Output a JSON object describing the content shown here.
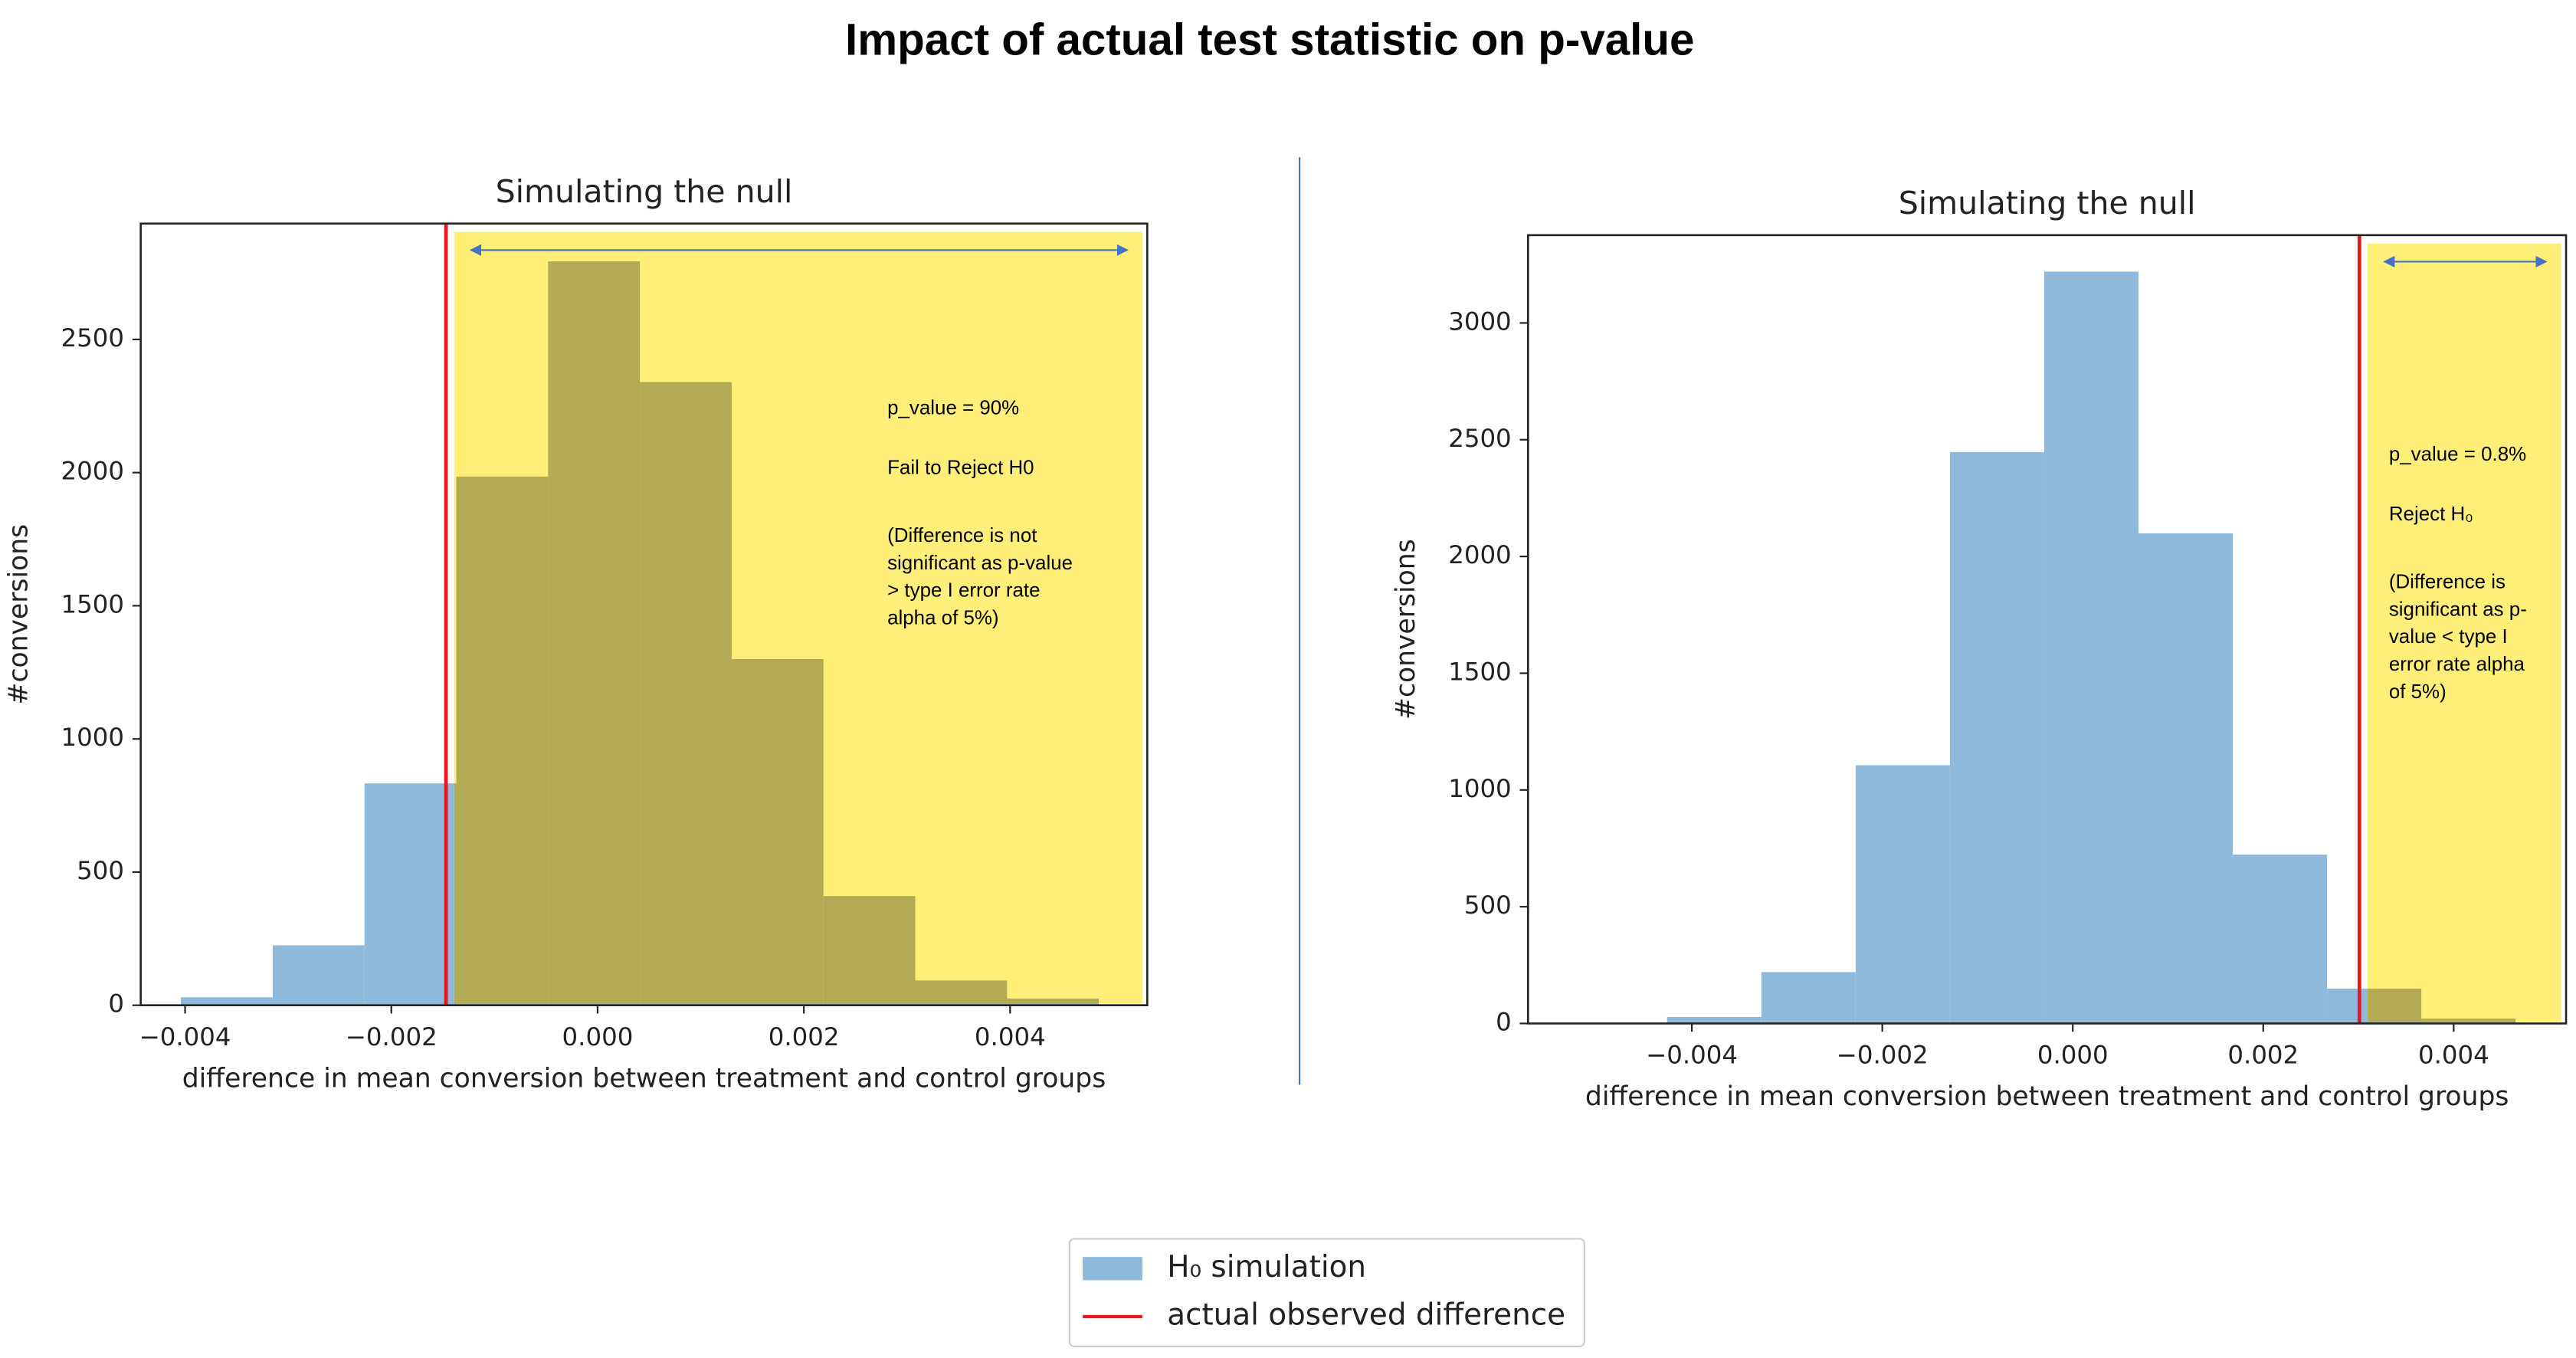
{
  "title": "Impact of actual test statistic on p-value",
  "legend": [
    {
      "label": "H₀ simulation",
      "color": "#8fb9da"
    },
    {
      "label": "actual observed difference",
      "color": "#e8171d"
    }
  ],
  "chart_data": [
    {
      "type": "histogram",
      "title": "Simulating the null",
      "xlabel": "difference in mean conversion between treatment and control groups",
      "ylabel": "#conversions",
      "bins": [
        -0.00404,
        -0.00315,
        -0.00226,
        -0.00137,
        -0.00048,
        0.00041,
        0.0013,
        0.00219,
        0.00308,
        0.00397,
        0.00486
      ],
      "counts": [
        30,
        225,
        833,
        1985,
        2793,
        2340,
        1300,
        410,
        93,
        25
      ],
      "color": "#8fb9da",
      "overlap_color": "#b3aa55",
      "observed": -0.00147,
      "observed_color": "#e8171d",
      "shade_color": "#ffef78",
      "xlim": [
        -0.00443,
        0.00533
      ],
      "ylim": [
        0,
        2935
      ],
      "xticks": [
        {
          "value": -0.004,
          "label": "−0.004"
        },
        {
          "value": -0.002,
          "label": "−0.002"
        },
        {
          "value": 0,
          "label": "0.000"
        },
        {
          "value": 0.002,
          "label": "0.002"
        },
        {
          "value": 0.004,
          "label": "0.004"
        }
      ],
      "yticks": [
        0,
        500,
        1000,
        1500,
        2000,
        2500
      ],
      "annotation": {
        "p_value": "p_value = 90%",
        "decision": "Fail to Reject H0",
        "explanation": [
          "(Difference is not",
          "significant as p-value",
          "> type I error rate",
          "alpha of 5%)"
        ]
      }
    },
    {
      "type": "histogram",
      "title": "Simulating the null",
      "xlabel": "difference in mean conversion between treatment and control groups",
      "ylabel": "#conversions",
      "bins": [
        -0.00426,
        -0.00327,
        -0.00228,
        -0.00129,
        -0.0003,
        0.00069,
        0.00168,
        0.00267,
        0.00366,
        0.00465
      ],
      "counts": [
        28,
        220,
        1106,
        2447,
        3220,
        2099,
        723,
        149,
        21
      ],
      "color": "#8fb9da",
      "overlap_color": "#b3aa55",
      "observed": 0.00301,
      "observed_color": "#e8171d",
      "shade_color": "#ffef78",
      "xlim": [
        -0.00572,
        0.00518
      ],
      "ylim": [
        0,
        3376
      ],
      "xticks": [
        {
          "value": -0.004,
          "label": "−0.004"
        },
        {
          "value": -0.002,
          "label": "−0.002"
        },
        {
          "value": 0,
          "label": "0.000"
        },
        {
          "value": 0.002,
          "label": "0.002"
        },
        {
          "value": 0.004,
          "label": "0.004"
        }
      ],
      "yticks": [
        0,
        500,
        1000,
        1500,
        2000,
        2500,
        3000
      ],
      "annotation": {
        "p_value": "p_value = 0.8%",
        "decision": "Reject H₀",
        "explanation": [
          "(Difference is",
          "significant as p-",
          "value < type I",
          "error rate alpha",
          "of 5%)"
        ]
      }
    }
  ]
}
